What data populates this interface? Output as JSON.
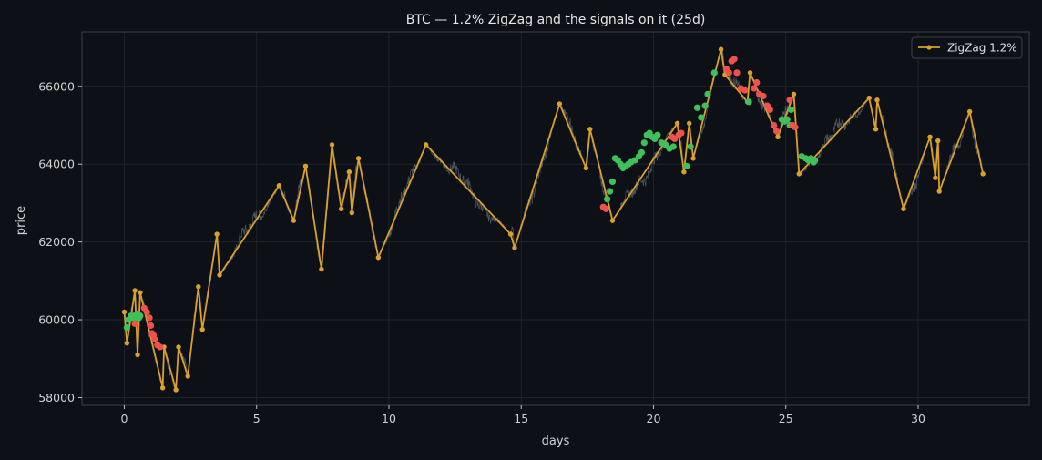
{
  "chart_data": {
    "type": "line",
    "title": "BTC — 1.2% ZigZag and the signals on it (25d)",
    "xlabel": "days",
    "ylabel": "price",
    "xlim": [
      -1.6,
      34.2
    ],
    "ylim": [
      57800,
      67400
    ],
    "xticks": [
      0,
      5,
      10,
      15,
      20,
      25,
      30
    ],
    "yticks": [
      58000,
      60000,
      62000,
      64000,
      66000
    ],
    "grid": true,
    "legend": "top-right",
    "colors": {
      "background": "#0d1117",
      "price": "#6b7078",
      "zigzag": "#d9a02b",
      "buy": "#3ec15a",
      "sell": "#f0524b",
      "grid": "#1e232b",
      "spine": "#3a3f47"
    },
    "series": [
      {
        "name": "ZigZag 1.2%",
        "x": [
          0,
          0.1,
          0.4,
          0.5,
          0.6,
          1.45,
          1.5,
          1.95,
          2.05,
          2.4,
          2.8,
          2.95,
          3.5,
          3.6,
          5.85,
          6.4,
          6.85,
          7.45,
          7.85,
          8.2,
          8.5,
          8.6,
          8.85,
          9.6,
          11.4,
          14.6,
          14.75,
          16.45,
          17.45,
          17.6,
          18.45,
          20.9,
          21.15,
          21.35,
          21.5,
          22.55,
          22.7,
          23.55,
          23.65,
          24.7,
          25.3,
          25.5,
          28.15,
          28.4,
          28.45,
          29.45,
          30.45,
          30.65,
          30.75,
          30.8,
          31.95,
          32.45
        ],
        "y": [
          60200,
          59400,
          60750,
          59100,
          60700,
          58250,
          59300,
          58200,
          59300,
          58550,
          60850,
          59750,
          62200,
          61150,
          63450,
          62550,
          63950,
          61300,
          64500,
          62850,
          63800,
          62750,
          64150,
          61600,
          64500,
          62200,
          61850,
          65550,
          63900,
          64900,
          62550,
          65050,
          63800,
          65050,
          64150,
          66950,
          66300,
          65600,
          66350,
          64700,
          65800,
          63750,
          65700,
          64900,
          65650,
          62850,
          64700,
          63650,
          64600,
          63300,
          65350,
          63750
        ]
      }
    ],
    "price_series": {
      "anchors_x": [
        0,
        0.1,
        0.4,
        0.5,
        0.6,
        1.45,
        1.5,
        1.95,
        2.05,
        2.4,
        2.8,
        2.95,
        3.5,
        3.6,
        5.85,
        6.4,
        6.85,
        7.45,
        7.85,
        8.2,
        8.5,
        8.6,
        8.85,
        9.6,
        11.4,
        14.6,
        14.75,
        16.45,
        17.45,
        17.6,
        18.45,
        20.9,
        21.15,
        21.35,
        21.5,
        22.55,
        22.7,
        23.55,
        23.65,
        24.7,
        25.3,
        25.5,
        28.15,
        28.4,
        28.45,
        29.45,
        30.45,
        30.65,
        30.75,
        30.8,
        31.95,
        32.45
      ],
      "anchors_y": [
        60200,
        59400,
        60750,
        59100,
        60700,
        58250,
        59300,
        58200,
        59300,
        58550,
        60850,
        59750,
        62200,
        61150,
        63450,
        62550,
        63950,
        61300,
        64500,
        62850,
        63800,
        62750,
        64150,
        61600,
        64500,
        62200,
        61850,
        65550,
        63900,
        64900,
        62550,
        65050,
        63800,
        65050,
        64150,
        66950,
        66300,
        65600,
        66350,
        64700,
        65800,
        63750,
        65700,
        64900,
        65650,
        62850,
        64700,
        63650,
        64600,
        63300,
        65350,
        63750
      ]
    },
    "buy_signals": {
      "x": [
        0.1,
        0.15,
        0.25,
        0.3,
        0.35,
        0.45,
        0.5,
        0.55,
        0.6,
        18.25,
        18.35,
        18.45,
        18.55,
        18.65,
        18.75,
        18.85,
        18.95,
        19.05,
        19.15,
        19.3,
        19.45,
        19.55,
        19.65,
        19.75,
        19.85,
        19.95,
        20.05,
        20.15,
        20.3,
        20.45,
        20.6,
        20.75,
        21.25,
        21.4,
        21.65,
        21.8,
        21.95,
        22.05,
        22.3,
        23.6,
        24.85,
        24.95,
        25.05,
        25.15,
        25.2,
        25.6,
        25.75,
        25.85,
        25.95,
        26.05,
        26.1
      ],
      "y": [
        59800,
        60000,
        60100,
        60050,
        60100,
        60050,
        60150,
        60050,
        60100,
        63100,
        63300,
        63550,
        64150,
        64100,
        64000,
        63900,
        63950,
        64000,
        64050,
        64100,
        64200,
        64300,
        64550,
        64750,
        64800,
        64700,
        64650,
        64750,
        64550,
        64500,
        64400,
        64450,
        63950,
        64450,
        65450,
        65200,
        65500,
        65800,
        66350,
        65600,
        65150,
        65100,
        65150,
        65000,
        65400,
        64200,
        64150,
        64100,
        64150,
        64050,
        64100
      ]
    },
    "sell_signals": {
      "x": [
        0.4,
        0.75,
        0.85,
        0.95,
        1.0,
        1.05,
        1.1,
        1.15,
        1.25,
        1.35,
        18.1,
        18.2,
        20.7,
        20.8,
        20.95,
        21.05,
        22.75,
        22.85,
        22.95,
        23.05,
        23.15,
        23.3,
        23.45,
        23.8,
        23.9,
        24.0,
        24.15,
        24.3,
        24.4,
        24.55,
        24.65,
        25.15,
        25.25,
        25.35
      ],
      "y": [
        59900,
        60300,
        60200,
        60050,
        59850,
        59650,
        59600,
        59500,
        59350,
        59300,
        62900,
        62850,
        64700,
        64650,
        64750,
        64800,
        66450,
        66350,
        66650,
        66700,
        66350,
        65950,
        65900,
        65950,
        66100,
        65800,
        65750,
        65500,
        65400,
        65000,
        64850,
        65650,
        65000,
        64950
      ]
    }
  }
}
